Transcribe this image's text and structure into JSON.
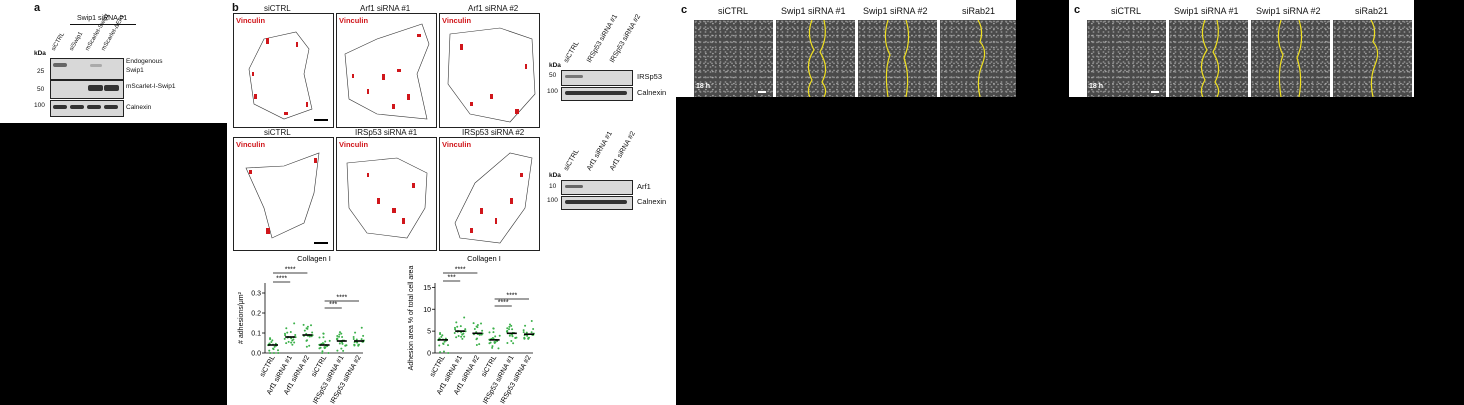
{
  "panel_a": {
    "letter": "a",
    "group_label": "Swip1 siRNA #1",
    "kda": "kDa",
    "lanes": [
      "siCTRL",
      "siSwip1",
      "mScarlet-Swip1",
      "mScarlet-ΔEF1"
    ],
    "markers": [
      "25",
      "50",
      "100"
    ],
    "blot_labels": [
      "Endogenous",
      "Swip1",
      "mScarlet-I-Swip1",
      "Calnexin"
    ]
  },
  "panel_b": {
    "letter": "b",
    "row1_titles": [
      "siCTRL",
      "Arf1 siRNA #1",
      "Arf1 siRNA #2"
    ],
    "row2_titles": [
      "siCTRL",
      "IRSp53 siRNA #1",
      "IRSp53 siRNA #2"
    ],
    "stain": "Vinculin",
    "blot1": {
      "kda": "kDa",
      "lanes": [
        "siCTRL",
        "IRSp53 siRNA #1",
        "IRSp53 siRNA #2"
      ],
      "markers": [
        "50",
        "100"
      ],
      "labels": [
        "IRSp53",
        "Calnexin"
      ]
    },
    "blot2": {
      "kda": "kDa",
      "lanes": [
        "siCTRL",
        "Arf1 siRNA #1",
        "Arf1 siRNA #2"
      ],
      "markers": [
        "10",
        "100"
      ],
      "labels": [
        "Arf1",
        "Calnexin"
      ]
    },
    "chart1": {
      "title": "Collagen I",
      "ylabel": "# adhesions/μm²",
      "ticks": [
        "0.0",
        "0.1",
        "0.2",
        "0.3"
      ],
      "sig": [
        "****",
        "****",
        "****",
        "***"
      ]
    },
    "chart2": {
      "title": "Collagen I",
      "ylabel": "Adhesion area % of total cell area",
      "ticks": [
        "0",
        "5",
        "10",
        "15"
      ],
      "sig": [
        "****",
        "***",
        "****",
        "****"
      ]
    }
  },
  "panel_c1": {
    "letter": "c",
    "titles": [
      "siCTRL",
      "Swip1 siRNA #1",
      "Swip1 siRNA #2",
      "siRab21"
    ],
    "time": "18 h"
  },
  "panel_c2": {
    "letter": "c",
    "titles": [
      "siCTRL",
      "Swip1 siRNA #1",
      "Swip1 siRNA #2",
      "siRab21"
    ],
    "time": "18 h"
  },
  "chart_data": [
    {
      "type": "scatter",
      "title": "Collagen I",
      "ylabel": "# adhesions/μm²",
      "categories": [
        "siCTRL",
        "Arf1 siRNA #1",
        "Arf1 siRNA #2",
        "siCTRL",
        "IRSp53 siRNA #1",
        "IRSp53 siRNA #2"
      ],
      "means": [
        0.04,
        0.08,
        0.09,
        0.04,
        0.06,
        0.06
      ],
      "ylim": [
        0,
        0.35
      ]
    },
    {
      "type": "scatter",
      "title": "Collagen I",
      "ylabel": "Adhesion area % of total cell area",
      "categories": [
        "siCTRL",
        "Arf1 siRNA #1",
        "Arf1 siRNA #2",
        "siCTRL",
        "IRSp53 siRNA #1",
        "IRSp53 siRNA #2"
      ],
      "means": [
        3,
        5,
        4.5,
        3,
        4.5,
        4.3
      ],
      "ylim": [
        0,
        16
      ]
    }
  ]
}
